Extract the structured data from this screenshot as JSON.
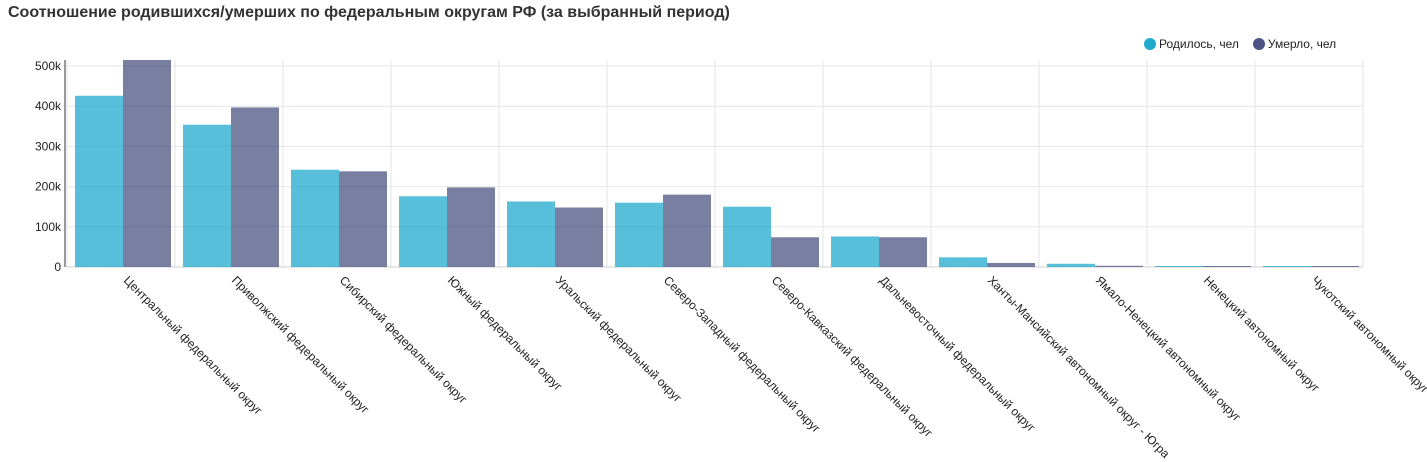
{
  "title": "Соотношение родившихся/умерших по федеральным округам РФ (за выбранный период)",
  "legend": [
    {
      "name": "Родилось, чел",
      "color": "#1fa9cc",
      "icon": "circle-icon"
    },
    {
      "name": "Умерло, чел",
      "color": "#4b5482",
      "icon": "circle-icon"
    }
  ],
  "chart_data": {
    "type": "bar",
    "title": "Соотношение родившихся/умерших по федеральным округам РФ (за выбранный период)",
    "xlabel": "",
    "ylabel": "",
    "ylim": [
      0,
      500000
    ],
    "yticks": [
      0,
      100000,
      200000,
      300000,
      400000,
      500000
    ],
    "ytick_labels": [
      "0",
      "100k",
      "200k",
      "300k",
      "400k",
      "500k"
    ],
    "grid": true,
    "legend_position": "top-right",
    "categories": [
      "Центральный федеральный округ",
      "Приволжский федеральный округ",
      "Сибирский федеральный округ",
      "Южный федеральный округ",
      "Уральский федеральный округ",
      "Северо-Западный федеральный округ",
      "Северо-Кавказский федеральный округ",
      "Дальневосточный федеральный округ",
      "Ханты-Мансийский автономный округ - Югра",
      "Ямало-Ненецкий автономный округ",
      "Ненецкий автономный округ",
      "Чукотский автономный округ"
    ],
    "series": [
      {
        "name": "Родилось, чел",
        "color": "#1fa9cc",
        "values": [
          426000,
          354000,
          242000,
          176000,
          163000,
          160000,
          150000,
          76000,
          24000,
          8000,
          1000,
          600
        ]
      },
      {
        "name": "Умерло, чел",
        "color": "#4b5482",
        "values": [
          515000,
          397000,
          238000,
          198000,
          148000,
          180000,
          74000,
          74000,
          10000,
          3000,
          1000,
          600
        ]
      }
    ]
  }
}
